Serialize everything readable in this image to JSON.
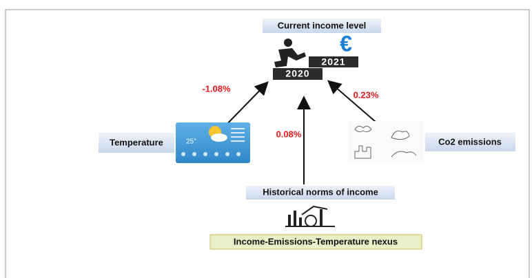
{
  "header": {
    "title": "Current income level"
  },
  "icon": {
    "years": [
      "2021",
      "2020"
    ],
    "currency": "€"
  },
  "weather": {
    "temp": "25°"
  },
  "nodes": [
    {
      "label": "Temperature",
      "effect": "-1.08%"
    },
    {
      "label": "Historical norms of income",
      "effect": "0.08%"
    },
    {
      "label": "Co2 emissions",
      "effect": "0.23%"
    }
  ],
  "footer": {
    "label": "Income-Emissions-Temperature nexus"
  }
}
